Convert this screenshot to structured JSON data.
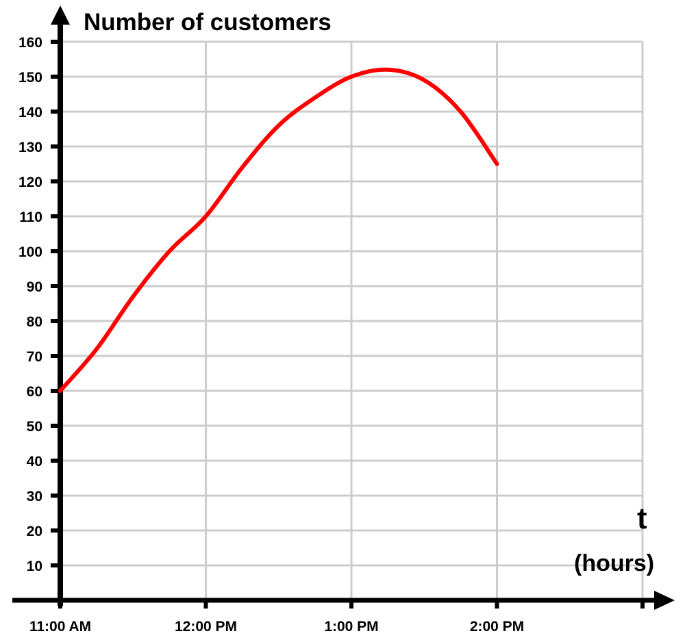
{
  "chart_data": {
    "type": "line",
    "title": "",
    "ylabel": "Number of customers",
    "xlabel_symbol": "t",
    "xlabel_unit": "(hours)",
    "ylim": [
      0,
      160
    ],
    "y_ticks": [
      10,
      20,
      30,
      40,
      50,
      60,
      70,
      80,
      90,
      100,
      110,
      120,
      130,
      140,
      150,
      160
    ],
    "xlim": [
      0,
      4
    ],
    "x_ticks": [
      {
        "x": 0,
        "label": "11:00 AM"
      },
      {
        "x": 1,
        "label": "12:00 PM"
      },
      {
        "x": 2,
        "label": "1:00 PM"
      },
      {
        "x": 3,
        "label": "2:00 PM"
      }
    ],
    "grid": true,
    "series": [
      {
        "color": "#ff0000",
        "x": [
          0,
          0.25,
          0.5,
          0.75,
          1,
          1.25,
          1.5,
          1.75,
          2,
          2.25,
          2.5,
          2.75,
          3
        ],
        "y": [
          60,
          72,
          87,
          100,
          110,
          124,
          136,
          144,
          150,
          152,
          149,
          140,
          125
        ]
      }
    ]
  }
}
